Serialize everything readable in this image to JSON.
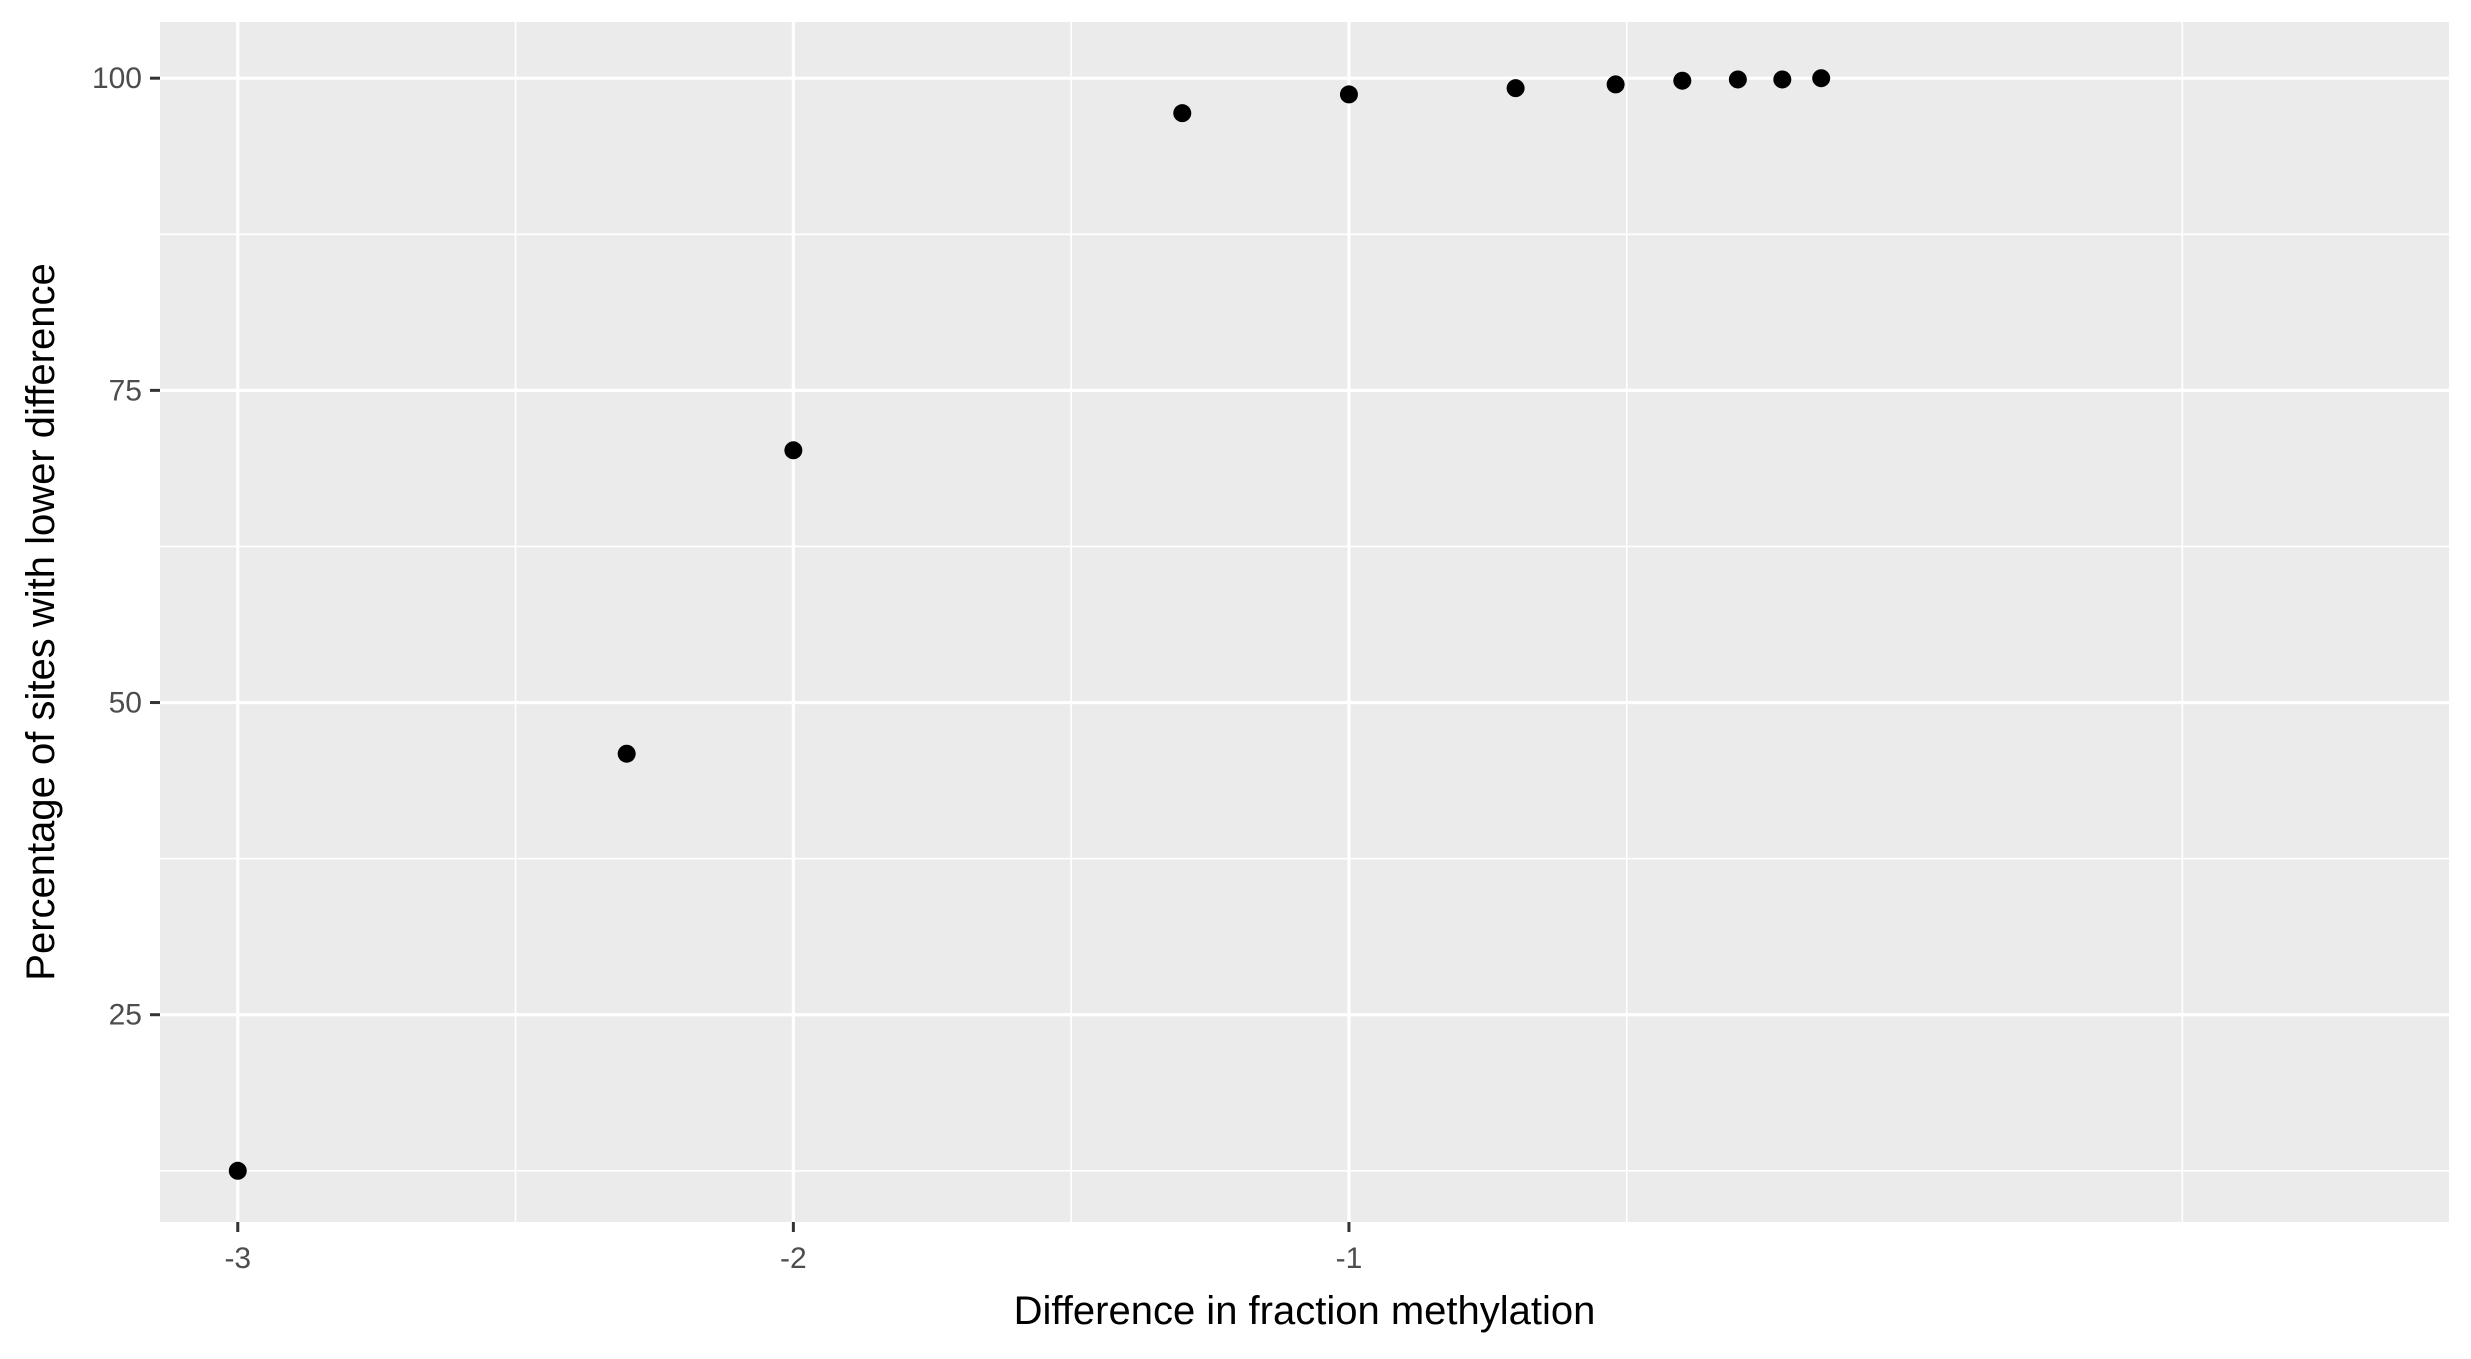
{
  "chart_data": {
    "type": "scatter",
    "title": "",
    "xlabel": "Difference in fraction methylation",
    "ylabel": "Percentage of sites with lower difference",
    "xlim": [
      -3.14,
      0.98
    ],
    "ylim": [
      8.4,
      104.5
    ],
    "x_ticks": [
      -3,
      -2,
      -1
    ],
    "x_tick_labels": [
      "-3",
      "-2",
      "-1"
    ],
    "y_ticks": [
      25,
      50,
      75,
      100
    ],
    "y_tick_labels": [
      "25",
      "50",
      "75",
      "100"
    ],
    "grid": true,
    "legend": "none",
    "colors": {
      "panel_background": "#ebebeb",
      "grid_line": "#ffffff",
      "point": "#000000"
    },
    "points": [
      {
        "x": -3.0,
        "y": 12.5
      },
      {
        "x": -2.3,
        "y": 45.9
      },
      {
        "x": -2.0,
        "y": 70.2
      },
      {
        "x": -1.3,
        "y": 97.2
      },
      {
        "x": -1.0,
        "y": 98.7
      },
      {
        "x": -0.7,
        "y": 99.2
      },
      {
        "x": -0.52,
        "y": 99.5
      },
      {
        "x": -0.4,
        "y": 99.8
      },
      {
        "x": -0.3,
        "y": 99.9
      },
      {
        "x": -0.22,
        "y": 99.9
      },
      {
        "x": -0.15,
        "y": 100.0
      }
    ]
  }
}
